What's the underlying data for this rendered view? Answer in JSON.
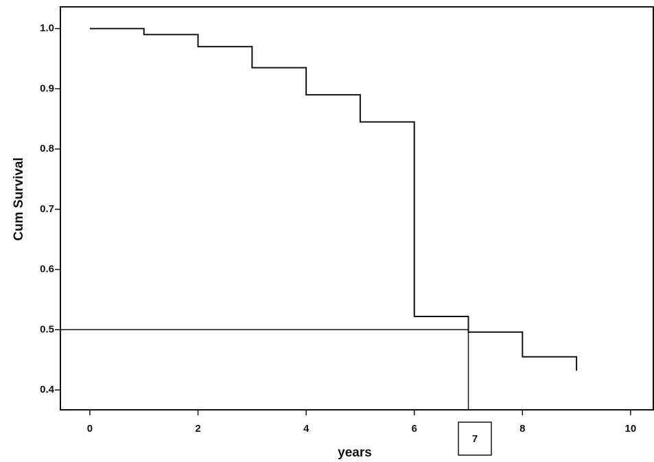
{
  "chart_data": {
    "type": "step",
    "xlabel": "years",
    "ylabel": "Cum Survival",
    "x": [
      0,
      1,
      2,
      3,
      4,
      5,
      6,
      7,
      8,
      9
    ],
    "series": [
      {
        "color": "#111111",
        "values": [
          1.0,
          0.99,
          0.97,
          0.935,
          0.89,
          0.845,
          0.522,
          0.496,
          0.455,
          0.432
        ]
      }
    ],
    "xlim": [
      -0.545,
      10.42
    ],
    "ylim": [
      0.367,
      1.036
    ],
    "xticks": [
      0,
      2,
      4,
      6,
      8,
      10
    ],
    "yticks": [
      0.4,
      0.5,
      0.6,
      0.7,
      0.8,
      0.9,
      {
        "value": 1.0,
        "label": "1.0"
      }
    ],
    "reference_y": 0.5,
    "reference_x": 7,
    "annotation": "7"
  }
}
